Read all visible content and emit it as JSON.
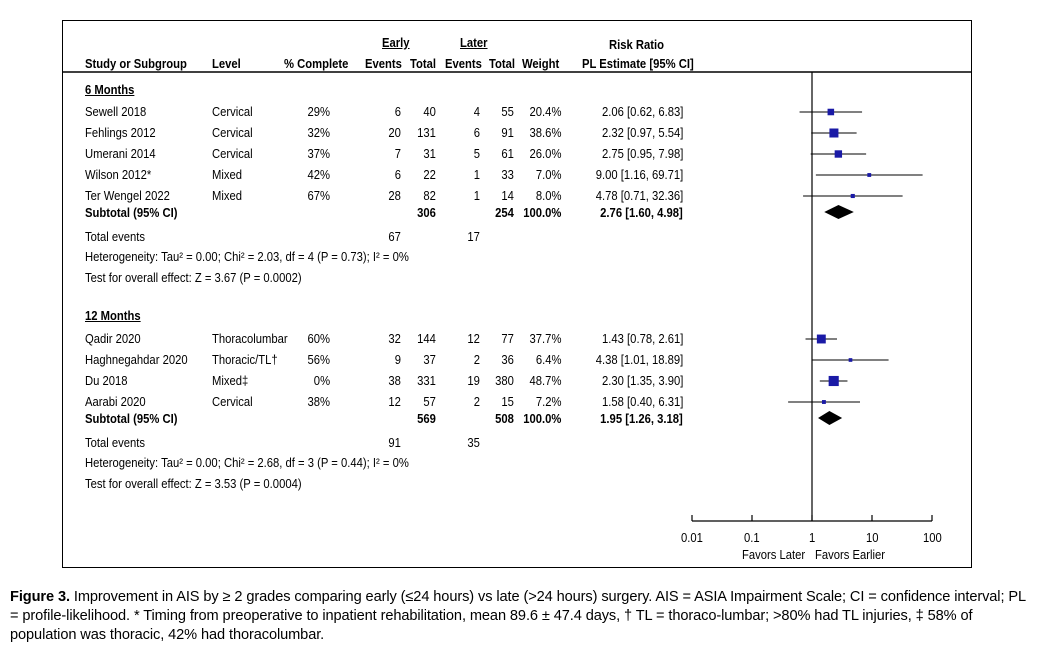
{
  "headers": {
    "study": "Study or Subgroup",
    "level": "Level",
    "complete": "% Complete",
    "early_group": "Early",
    "later_group": "Later",
    "events": "Events",
    "total": "Total",
    "weight": "Weight",
    "rr_title": "Risk Ratio",
    "rr_sub": "PL Estimate [95% CI]"
  },
  "groups": [
    {
      "title": "6 Months",
      "studies": [
        {
          "name": "Sewell 2018",
          "level": "Cervical",
          "complete": "29%",
          "e_events": "6",
          "e_total": "40",
          "l_events": "4",
          "l_total": "55",
          "weight": "20.4%",
          "ci": "2.06 [0.62, 6.83]"
        },
        {
          "name": "Fehlings 2012",
          "level": "Cervical",
          "complete": "32%",
          "e_events": "20",
          "e_total": "131",
          "l_events": "6",
          "l_total": "91",
          "weight": "38.6%",
          "ci": "2.32 [0.97, 5.54]"
        },
        {
          "name": "Umerani 2014",
          "level": "Cervical",
          "complete": "37%",
          "e_events": "7",
          "e_total": "31",
          "l_events": "5",
          "l_total": "61",
          "weight": "26.0%",
          "ci": "2.75 [0.95, 7.98]"
        },
        {
          "name": "Wilson 2012*",
          "level": "Mixed",
          "complete": "42%",
          "e_events": "6",
          "e_total": "22",
          "l_events": "1",
          "l_total": "33",
          "weight": "7.0%",
          "ci": "9.00 [1.16, 69.71]"
        },
        {
          "name": "Ter Wengel 2022",
          "level": "Mixed",
          "complete": "67%",
          "e_events": "28",
          "e_total": "82",
          "l_events": "1",
          "l_total": "14",
          "weight": "8.0%",
          "ci": "4.78 [0.71, 32.36]"
        }
      ],
      "subtotal": {
        "label": "Subtotal (95% CI)",
        "e_total": "306",
        "l_total": "254",
        "weight": "100.0%",
        "ci": "2.76 [1.60, 4.98]"
      },
      "total_events": {
        "label": "Total events",
        "early": "67",
        "later": "17"
      },
      "heterogeneity": "Heterogeneity: Tau² = 0.00; Chi² = 2.03, df = 4 (P = 0.73); I² = 0%",
      "overall": "Test for overall effect: Z = 3.67 (P = 0.0002)"
    },
    {
      "title": "12 Months",
      "studies": [
        {
          "name": "Qadir 2020",
          "level": "Thoracolumbar",
          "complete": "60%",
          "e_events": "32",
          "e_total": "144",
          "l_events": "12",
          "l_total": "77",
          "weight": "37.7%",
          "ci": "1.43 [0.78, 2.61]"
        },
        {
          "name": "Haghnegahdar 2020",
          "level": "Thoracic/TL†",
          "complete": "56%",
          "e_events": "9",
          "e_total": "37",
          "l_events": "2",
          "l_total": "36",
          "weight": "6.4%",
          "ci": "4.38 [1.01, 18.89]"
        },
        {
          "name": "Du 2018",
          "level": "Mixed‡",
          "complete": "0%",
          "e_events": "38",
          "e_total": "331",
          "l_events": "19",
          "l_total": "380",
          "weight": "48.7%",
          "ci": "2.30 [1.35, 3.90]"
        },
        {
          "name": "Aarabi 2020",
          "level": "Cervical",
          "complete": "38%",
          "e_events": "12",
          "e_total": "57",
          "l_events": "2",
          "l_total": "15",
          "weight": "7.2%",
          "ci": "1.58 [0.40, 6.31]"
        }
      ],
      "subtotal": {
        "label": "Subtotal (95% CI)",
        "e_total": "569",
        "l_total": "508",
        "weight": "100.0%",
        "ci": "1.95 [1.26, 3.18]"
      },
      "total_events": {
        "label": "Total events",
        "early": "91",
        "later": "35"
      },
      "heterogeneity": "Heterogeneity: Tau² = 0.00; Chi² = 2.68, df = 3 (P = 0.44); I² = 0%",
      "overall": "Test for overall effect: Z = 3.53 (P = 0.0004)"
    }
  ],
  "chart_data": {
    "type": "forest",
    "scale": "log",
    "xlim": [
      0.01,
      100
    ],
    "ticks": [
      0.01,
      0.1,
      1,
      10,
      100
    ],
    "tick_labels": [
      "0.01",
      "0.1",
      "1",
      "10",
      "100"
    ],
    "favors_left": "Favors Later",
    "favors_right": "Favors Earlier",
    "series": [
      {
        "name": "6 Months",
        "points": [
          {
            "study": "Sewell 2018",
            "rr": 2.06,
            "lo": 0.62,
            "hi": 6.83,
            "weight": 20.4
          },
          {
            "study": "Fehlings 2012",
            "rr": 2.32,
            "lo": 0.97,
            "hi": 5.54,
            "weight": 38.6
          },
          {
            "study": "Umerani 2014",
            "rr": 2.75,
            "lo": 0.95,
            "hi": 7.98,
            "weight": 26.0
          },
          {
            "study": "Wilson 2012*",
            "rr": 9.0,
            "lo": 1.16,
            "hi": 69.71,
            "weight": 7.0
          },
          {
            "study": "Ter Wengel 2022",
            "rr": 4.78,
            "lo": 0.71,
            "hi": 32.36,
            "weight": 8.0
          }
        ],
        "subtotal": {
          "rr": 2.76,
          "lo": 1.6,
          "hi": 4.98
        }
      },
      {
        "name": "12 Months",
        "points": [
          {
            "study": "Qadir 2020",
            "rr": 1.43,
            "lo": 0.78,
            "hi": 2.61,
            "weight": 37.7
          },
          {
            "study": "Haghnegahdar 2020",
            "rr": 4.38,
            "lo": 1.01,
            "hi": 18.89,
            "weight": 6.4
          },
          {
            "study": "Du 2018",
            "rr": 2.3,
            "lo": 1.35,
            "hi": 3.9,
            "weight": 48.7
          },
          {
            "study": "Aarabi 2020",
            "rr": 1.58,
            "lo": 0.4,
            "hi": 6.31,
            "weight": 7.2
          }
        ],
        "subtotal": {
          "rr": 1.95,
          "lo": 1.26,
          "hi": 3.18
        }
      }
    ]
  },
  "colors": {
    "marker": "#1a1aa6",
    "diamond": "#000000"
  },
  "caption": {
    "label": "Figure 3.",
    "text": " Improvement in AIS by ≥ 2 grades comparing early (≤24 hours) vs late (>24 hours) surgery. AIS = ASIA Impairment Scale; CI = confidence interval; PL = profile-likelihood. * Timing from preoperative to inpatient rehabilitation, mean 89.6 ± 47.4 days, † TL = thoraco-lumbar; >80% had TL injuries, ‡ 58% of population was thoracic, 42% had thoracolumbar."
  }
}
